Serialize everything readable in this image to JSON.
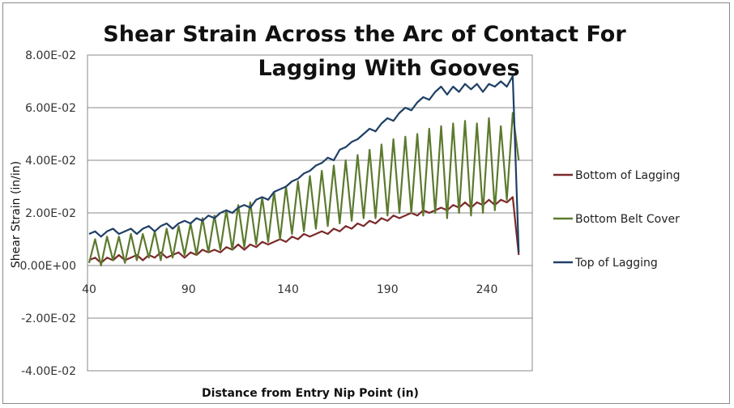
{
  "chart_data": {
    "type": "line",
    "title": "Shear Strain Across the Arc of Contact For Lagging With Gooves",
    "title_lines": [
      "Shear Strain Across the Arc of Contact For",
      "Lagging With Gooves"
    ],
    "xlabel": "Distance from Entry Nip Point (in)",
    "ylabel": "Shear Strain (in/in)",
    "xlim": [
      40,
      264
    ],
    "ylim": [
      -0.04,
      0.08
    ],
    "x_ticks": [
      "40",
      "90",
      "140",
      "190",
      "240"
    ],
    "x_tick_values": [
      40,
      90,
      140,
      190,
      240
    ],
    "y_ticks": [
      "8.00E-02",
      "6.00E-02",
      "4.00E-02",
      "2.00E-02",
      "0.00E+00",
      "-2.00E-02",
      "-4.00E-02"
    ],
    "y_tick_values": [
      0.08,
      0.06,
      0.04,
      0.02,
      0,
      -0.02,
      -0.04
    ],
    "grid": true,
    "legend": "right",
    "x": [
      40,
      43,
      46,
      49,
      52,
      55,
      58,
      61,
      64,
      67,
      70,
      73,
      76,
      79,
      82,
      85,
      88,
      91,
      94,
      97,
      100,
      103,
      106,
      109,
      112,
      115,
      118,
      121,
      124,
      127,
      130,
      133,
      136,
      139,
      142,
      145,
      148,
      151,
      154,
      157,
      160,
      163,
      166,
      169,
      172,
      175,
      178,
      181,
      184,
      187,
      190,
      193,
      196,
      199,
      202,
      205,
      208,
      211,
      214,
      217,
      220,
      223,
      226,
      229,
      232,
      235,
      238,
      241,
      244,
      247,
      250,
      253,
      256
    ],
    "series": [
      {
        "name": "Bottom of Lagging",
        "color": "#7b2a2a",
        "values": [
          0.002,
          0.003,
          0.001,
          0.003,
          0.002,
          0.004,
          0.002,
          0.003,
          0.004,
          0.002,
          0.004,
          0.003,
          0.005,
          0.003,
          0.004,
          0.005,
          0.003,
          0.005,
          0.004,
          0.006,
          0.005,
          0.006,
          0.005,
          0.007,
          0.006,
          0.008,
          0.006,
          0.008,
          0.007,
          0.009,
          0.008,
          0.009,
          0.01,
          0.009,
          0.011,
          0.01,
          0.012,
          0.011,
          0.012,
          0.013,
          0.012,
          0.014,
          0.013,
          0.015,
          0.014,
          0.016,
          0.015,
          0.017,
          0.016,
          0.018,
          0.017,
          0.019,
          0.018,
          0.019,
          0.02,
          0.019,
          0.021,
          0.02,
          0.021,
          0.022,
          0.021,
          0.023,
          0.022,
          0.024,
          0.022,
          0.024,
          0.023,
          0.025,
          0.023,
          0.025,
          0.024,
          0.026,
          0.004
        ]
      },
      {
        "name": "Bottom Belt Cover",
        "color": "#5c7a2e",
        "values": [
          0.001,
          0.01,
          0.0,
          0.011,
          0.002,
          0.011,
          0.001,
          0.012,
          0.002,
          0.012,
          0.003,
          0.013,
          0.002,
          0.014,
          0.003,
          0.015,
          0.004,
          0.016,
          0.004,
          0.018,
          0.005,
          0.019,
          0.006,
          0.021,
          0.006,
          0.023,
          0.007,
          0.024,
          0.008,
          0.026,
          0.009,
          0.028,
          0.01,
          0.03,
          0.012,
          0.032,
          0.013,
          0.034,
          0.014,
          0.036,
          0.015,
          0.038,
          0.016,
          0.04,
          0.017,
          0.042,
          0.018,
          0.044,
          0.018,
          0.046,
          0.019,
          0.048,
          0.02,
          0.049,
          0.02,
          0.05,
          0.019,
          0.052,
          0.02,
          0.053,
          0.018,
          0.054,
          0.02,
          0.055,
          0.019,
          0.054,
          0.02,
          0.056,
          0.021,
          0.053,
          0.025,
          0.058,
          0.04
        ]
      },
      {
        "name": "Top of Lagging",
        "color": "#1f3f66",
        "values": [
          0.012,
          0.013,
          0.011,
          0.013,
          0.014,
          0.012,
          0.013,
          0.014,
          0.012,
          0.014,
          0.015,
          0.013,
          0.015,
          0.016,
          0.014,
          0.016,
          0.017,
          0.016,
          0.018,
          0.017,
          0.019,
          0.018,
          0.02,
          0.021,
          0.02,
          0.022,
          0.023,
          0.022,
          0.025,
          0.026,
          0.025,
          0.028,
          0.029,
          0.03,
          0.032,
          0.033,
          0.035,
          0.036,
          0.038,
          0.039,
          0.041,
          0.04,
          0.044,
          0.045,
          0.047,
          0.048,
          0.05,
          0.052,
          0.051,
          0.054,
          0.056,
          0.055,
          0.058,
          0.06,
          0.059,
          0.062,
          0.064,
          0.063,
          0.066,
          0.068,
          0.065,
          0.068,
          0.066,
          0.069,
          0.067,
          0.069,
          0.066,
          0.069,
          0.068,
          0.07,
          0.068,
          0.072,
          0.005
        ]
      }
    ]
  }
}
